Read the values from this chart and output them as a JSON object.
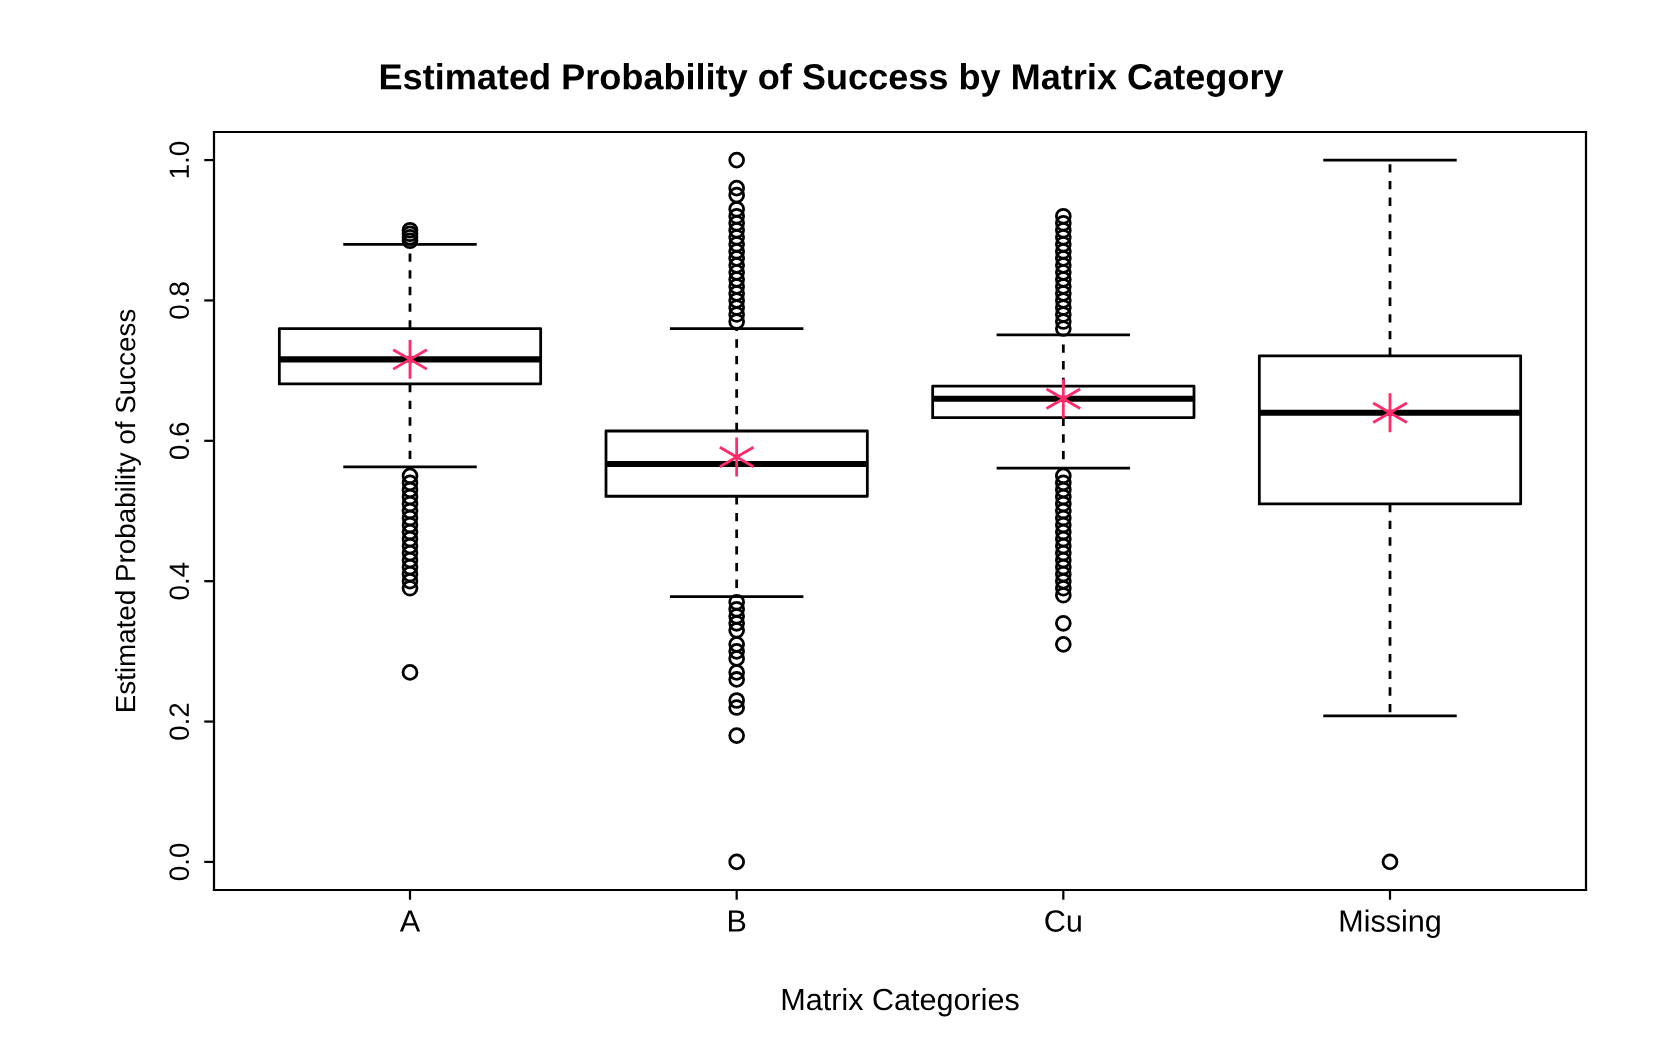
{
  "chart_data": {
    "type": "box",
    "title": "Estimated Probability of Success by Matrix Category",
    "xlabel": "Matrix Categories",
    "ylabel": "Estimated Probability of Success",
    "categories": [
      "A",
      "B",
      "Cu",
      "Missing"
    ],
    "boxes": [
      {
        "low": 0.563,
        "q1": 0.681,
        "median": 0.716,
        "q3": 0.76,
        "high": 0.88,
        "mean": 0.716,
        "outliers": [
          0.885,
          0.89,
          0.895,
          0.9,
          0.55,
          0.54,
          0.53,
          0.52,
          0.51,
          0.5,
          0.49,
          0.48,
          0.47,
          0.46,
          0.45,
          0.44,
          0.43,
          0.42,
          0.41,
          0.4,
          0.39,
          0.27
        ]
      },
      {
        "low": 0.378,
        "q1": 0.521,
        "median": 0.567,
        "q3": 0.614,
        "high": 0.76,
        "mean": 0.577,
        "outliers": [
          0.77,
          0.78,
          0.79,
          0.8,
          0.81,
          0.82,
          0.83,
          0.84,
          0.85,
          0.86,
          0.87,
          0.88,
          0.89,
          0.9,
          0.91,
          0.92,
          0.93,
          0.95,
          0.96,
          1.0,
          0.37,
          0.36,
          0.35,
          0.34,
          0.33,
          0.31,
          0.3,
          0.29,
          0.27,
          0.26,
          0.23,
          0.22,
          0.18,
          0.0
        ]
      },
      {
        "low": 0.561,
        "q1": 0.633,
        "median": 0.66,
        "q3": 0.678,
        "high": 0.751,
        "mean": 0.66,
        "outliers": [
          0.76,
          0.77,
          0.78,
          0.79,
          0.8,
          0.81,
          0.82,
          0.83,
          0.84,
          0.85,
          0.86,
          0.87,
          0.88,
          0.89,
          0.9,
          0.91,
          0.92,
          0.55,
          0.54,
          0.53,
          0.52,
          0.51,
          0.5,
          0.49,
          0.48,
          0.47,
          0.46,
          0.45,
          0.44,
          0.43,
          0.42,
          0.41,
          0.4,
          0.39,
          0.38,
          0.34,
          0.31
        ]
      },
      {
        "low": 0.208,
        "q1": 0.51,
        "median": 0.64,
        "q3": 0.721,
        "high": 1.0,
        "mean": 0.64,
        "outliers": [
          0.0
        ]
      }
    ],
    "ylim": [
      -0.04,
      1.04
    ],
    "yticks": [
      {
        "value": 0.0,
        "label": "0.0"
      },
      {
        "value": 0.2,
        "label": "0.2"
      },
      {
        "value": 0.4,
        "label": "0.4"
      },
      {
        "value": 0.6,
        "label": "0.6"
      },
      {
        "value": 0.8,
        "label": "0.8"
      },
      {
        "value": 1.0,
        "label": "1.0"
      }
    ],
    "grid": false
  }
}
